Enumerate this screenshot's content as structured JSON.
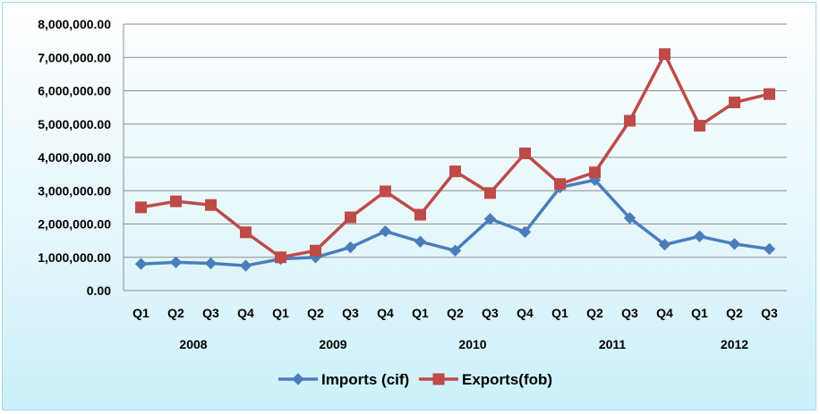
{
  "chart_data": {
    "type": "line",
    "title": "",
    "xlabel": "",
    "ylabel": "",
    "quarters": [
      "Q1",
      "Q2",
      "Q3",
      "Q4",
      "Q1",
      "Q2",
      "Q3",
      "Q4",
      "Q1",
      "Q2",
      "Q3",
      "Q4",
      "Q1",
      "Q2",
      "Q3",
      "Q4",
      "Q1",
      "Q2",
      "Q3"
    ],
    "years": [
      {
        "label": "2008",
        "start": 0,
        "end": 3
      },
      {
        "label": "2009",
        "start": 4,
        "end": 7
      },
      {
        "label": "2010",
        "start": 8,
        "end": 11
      },
      {
        "label": "2011",
        "start": 12,
        "end": 15
      },
      {
        "label": "2012",
        "start": 16,
        "end": 18
      }
    ],
    "ylim": [
      0,
      8000000
    ],
    "yticks": [
      0,
      1000000,
      2000000,
      3000000,
      4000000,
      5000000,
      6000000,
      7000000,
      8000000
    ],
    "ytick_labels": [
      "0.00",
      "1,000,000.00",
      "2,000,000.00",
      "3,000,000.00",
      "4,000,000.00",
      "5,000,000.00",
      "6,000,000.00",
      "7,000,000.00",
      "8,000,000.00"
    ],
    "grid": true,
    "legend_position": "bottom",
    "series": [
      {
        "name": "Imports (cif)",
        "color": "#4a7ebb",
        "marker": "diamond",
        "values": [
          800000,
          850000,
          820000,
          750000,
          950000,
          1000000,
          1300000,
          1780000,
          1470000,
          1200000,
          2150000,
          1760000,
          3100000,
          3320000,
          2180000,
          1380000,
          1630000,
          1400000,
          1250000
        ]
      },
      {
        "name": "Exports(fob)",
        "color": "#be4b48",
        "marker": "square",
        "values": [
          2500000,
          2680000,
          2570000,
          1750000,
          1000000,
          1200000,
          2200000,
          2980000,
          2280000,
          3580000,
          2930000,
          4120000,
          3200000,
          3550000,
          5100000,
          7100000,
          4950000,
          5650000,
          5900000
        ]
      }
    ]
  }
}
